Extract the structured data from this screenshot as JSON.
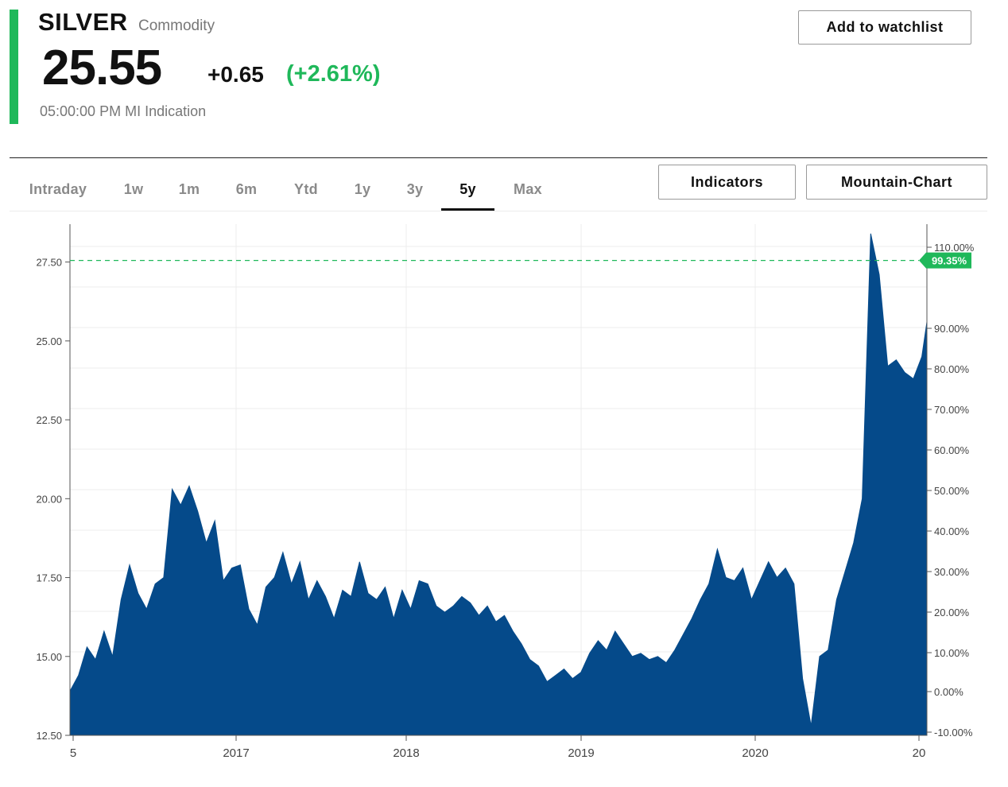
{
  "header": {
    "ticker": "SILVER",
    "asset_type": "Commodity",
    "price": "25.55",
    "change": "+0.65",
    "change_pct": "(+2.61%)",
    "timestamp": "05:00:00 PM MI Indication",
    "watchlist_label": "Add to watchlist",
    "accent_color": "#1fb85a"
  },
  "tabs": [
    {
      "label": "Intraday",
      "active": false
    },
    {
      "label": "1w",
      "active": false
    },
    {
      "label": "1m",
      "active": false
    },
    {
      "label": "6m",
      "active": false
    },
    {
      "label": "Ytd",
      "active": false
    },
    {
      "label": "1y",
      "active": false
    },
    {
      "label": "3y",
      "active": false
    },
    {
      "label": "5y",
      "active": true
    },
    {
      "label": "Max",
      "active": false
    }
  ],
  "controls": {
    "indicators_label": "Indicators",
    "chart_type_label": "Mountain-Chart"
  },
  "chart_data": {
    "type": "area",
    "series_color": "#054a8a",
    "reference_color": "#1fb85a",
    "ylim": [
      12.5,
      28.7
    ],
    "yticks": [
      "12.50",
      "15.00",
      "17.50",
      "20.00",
      "22.50",
      "25.00",
      "27.50"
    ],
    "yticks_right": [
      "-10.00%",
      "0.00%",
      "10.00%",
      "20.00%",
      "30.00%",
      "40.00%",
      "50.00%",
      "60.00%",
      "70.00%",
      "80.00%",
      "90.00%",
      "110.00%"
    ],
    "xticks": [
      "5",
      "2017",
      "2018",
      "2019",
      "2020",
      "20"
    ],
    "reference_value": 27.55,
    "reference_label": "99.35%",
    "x": [
      2015.95,
      2016.0,
      2016.05,
      2016.1,
      2016.15,
      2016.2,
      2016.25,
      2016.3,
      2016.35,
      2016.4,
      2016.45,
      2016.5,
      2016.55,
      2016.6,
      2016.65,
      2016.7,
      2016.75,
      2016.8,
      2016.85,
      2016.9,
      2016.95,
      2017.0,
      2017.05,
      2017.1,
      2017.15,
      2017.2,
      2017.25,
      2017.3,
      2017.35,
      2017.4,
      2017.45,
      2017.5,
      2017.55,
      2017.6,
      2017.65,
      2017.7,
      2017.75,
      2017.8,
      2017.85,
      2017.9,
      2017.95,
      2018.0,
      2018.05,
      2018.1,
      2018.15,
      2018.2,
      2018.25,
      2018.3,
      2018.35,
      2018.4,
      2018.45,
      2018.5,
      2018.55,
      2018.6,
      2018.65,
      2018.7,
      2018.75,
      2018.8,
      2018.85,
      2018.9,
      2018.95,
      2019.0,
      2019.05,
      2019.1,
      2019.15,
      2019.2,
      2019.25,
      2019.3,
      2019.35,
      2019.4,
      2019.45,
      2019.5,
      2019.55,
      2019.6,
      2019.65,
      2019.7,
      2019.75,
      2019.8,
      2019.85,
      2019.9,
      2019.95,
      2020.0,
      2020.05,
      2020.1,
      2020.15,
      2020.2,
      2020.25,
      2020.3,
      2020.35,
      2020.4,
      2020.45,
      2020.5,
      2020.55,
      2020.6,
      2020.65,
      2020.7,
      2020.75,
      2020.8,
      2020.85,
      2020.9,
      2020.95,
      2020.98
    ],
    "values": [
      13.9,
      14.4,
      15.3,
      14.9,
      15.8,
      15.0,
      16.8,
      17.9,
      17.0,
      16.5,
      17.3,
      17.5,
      20.3,
      19.8,
      20.4,
      19.6,
      18.6,
      19.3,
      17.4,
      17.8,
      17.9,
      16.5,
      16.0,
      17.2,
      17.5,
      18.3,
      17.3,
      18.0,
      16.8,
      17.4,
      16.9,
      16.2,
      17.1,
      16.9,
      18.0,
      17.0,
      16.8,
      17.2,
      16.2,
      17.1,
      16.5,
      17.4,
      17.3,
      16.6,
      16.4,
      16.6,
      16.9,
      16.7,
      16.3,
      16.6,
      16.1,
      16.3,
      15.8,
      15.4,
      14.9,
      14.7,
      14.2,
      14.4,
      14.6,
      14.3,
      14.5,
      15.1,
      15.5,
      15.2,
      15.8,
      15.4,
      15.0,
      15.1,
      14.9,
      15.0,
      14.8,
      15.2,
      15.7,
      16.2,
      16.8,
      17.3,
      18.4,
      17.5,
      17.4,
      17.8,
      16.8,
      17.4,
      18.0,
      17.5,
      17.8,
      17.3,
      14.3,
      12.8,
      15.0,
      15.2,
      16.8,
      17.7,
      18.6,
      20.0,
      28.4,
      27.1,
      24.2,
      24.4,
      24.0,
      23.8,
      24.5,
      25.6
    ]
  }
}
